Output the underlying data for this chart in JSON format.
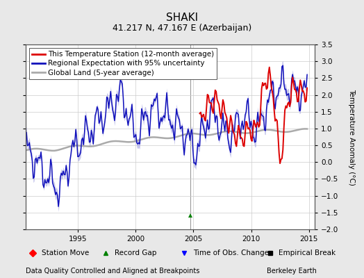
{
  "title": "SHAKI",
  "subtitle": "41.217 N, 47.167 E (Azerbaijan)",
  "ylabel": "Temperature Anomaly (°C)",
  "xlabel_left": "Data Quality Controlled and Aligned at Breakpoints",
  "xlabel_right": "Berkeley Earth",
  "xlim": [
    1990.5,
    2015.5
  ],
  "ylim": [
    -2.0,
    3.5
  ],
  "yticks": [
    -2,
    -1.5,
    -1,
    -0.5,
    0,
    0.5,
    1,
    1.5,
    2,
    2.5,
    3,
    3.5
  ],
  "xticks": [
    1995,
    2000,
    2005,
    2010,
    2015
  ],
  "vertical_line_x": 2004.75,
  "record_gap_x": 2004.75,
  "record_gap_y": -1.58,
  "background_color": "#e8e8e8",
  "plot_bg_color": "#ffffff",
  "regional_line_color": "#1111bb",
  "regional_fill_color": "#9999dd",
  "station_line_color": "#dd0000",
  "global_line_color": "#aaaaaa",
  "title_fontsize": 11,
  "subtitle_fontsize": 9,
  "legend_fontsize": 7.5,
  "axis_fontsize": 7.5,
  "footer_fontsize": 7
}
